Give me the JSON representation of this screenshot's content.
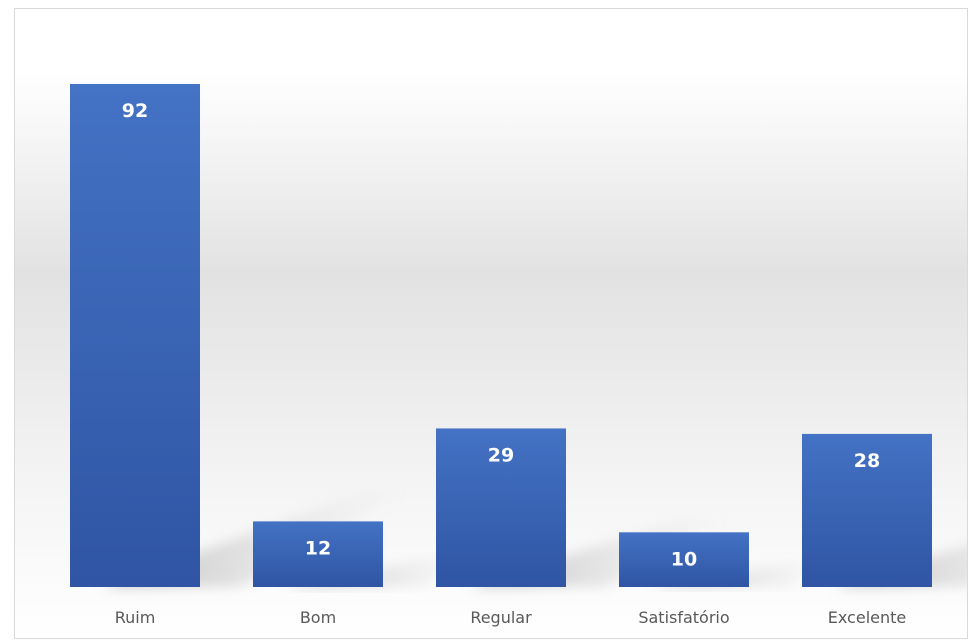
{
  "chart_data": {
    "type": "bar",
    "categories": [
      "Ruim",
      "Bom",
      "Regular",
      "Satisfatório",
      "Excelente"
    ],
    "values": [
      92,
      12,
      29,
      10,
      28
    ],
    "title": "",
    "xlabel": "",
    "ylabel": "",
    "ylim": [
      0,
      92
    ],
    "grid": false,
    "legend": "none",
    "data_labels": true,
    "colors": {
      "bar_top": "#4472c4",
      "bar_bottom": "#2f55a4",
      "data_label": "#ffffff",
      "category_label": "#595959",
      "frame_border": "#d9d9d9"
    }
  }
}
